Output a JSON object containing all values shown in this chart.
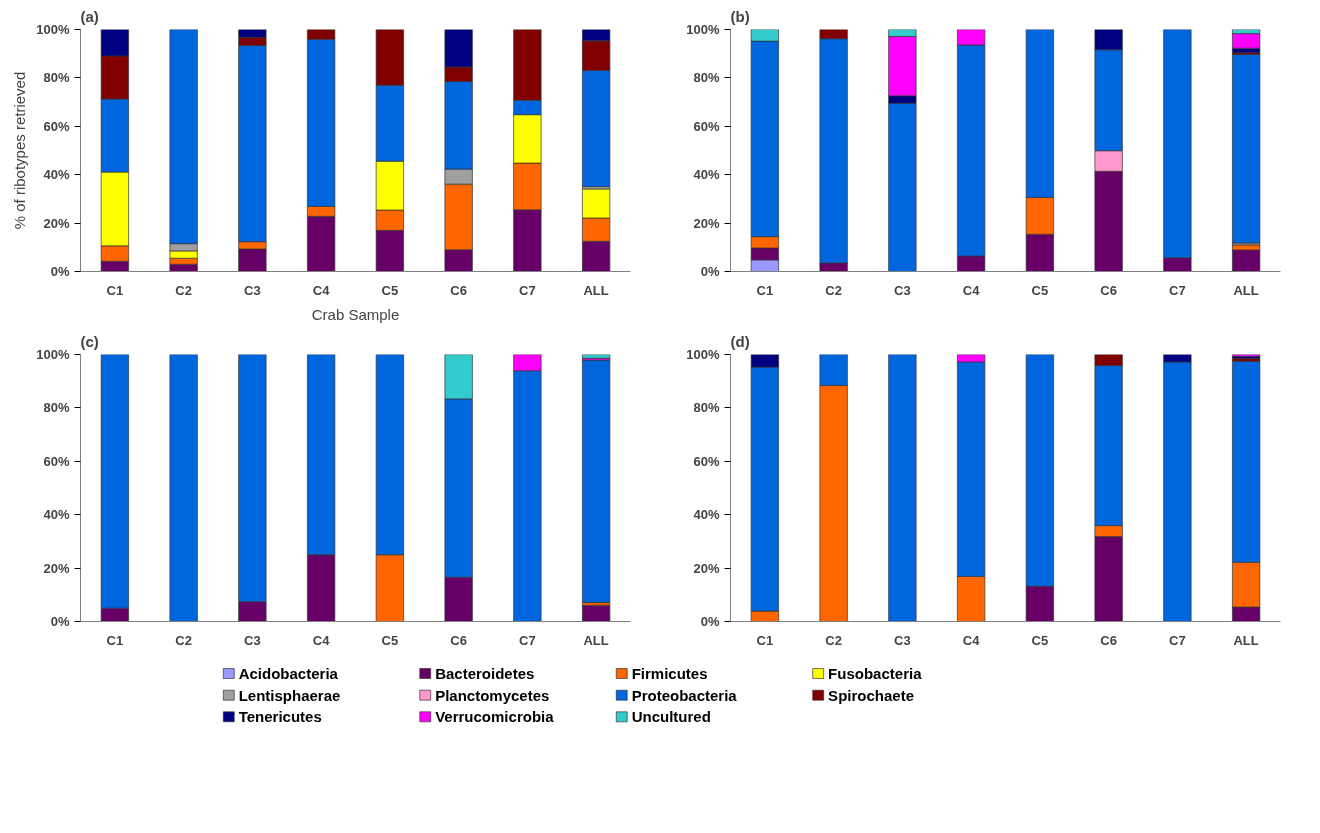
{
  "chart_data": [
    {
      "type": "bar",
      "stacked": true,
      "title": "(a)",
      "ylabel": "% of ribotypes retrieved",
      "xlabel": "Crab Sample",
      "categories": [
        "C1",
        "C2",
        "C3",
        "C4",
        "C5",
        "C6",
        "C7",
        "ALL"
      ],
      "ylim": [
        0,
        100
      ],
      "yticks": [
        {
          "value": 0,
          "label": "0%"
        },
        {
          "value": 20,
          "label": "20%"
        },
        {
          "value": 40,
          "label": "40%"
        },
        {
          "value": 60,
          "label": "60%"
        },
        {
          "value": 80,
          "label": "80%"
        },
        {
          "value": 100,
          "label": "100%"
        }
      ],
      "grid": false,
      "legend": "bottom",
      "series": [
        {
          "name": "Acidobacteria",
          "color": "#9999ff",
          "values": [
            null,
            null,
            null,
            null,
            null,
            null,
            null,
            null
          ]
        },
        {
          "name": "Bacteroidetes",
          "color": "#660066",
          "values": [
            4.2,
            3,
            9.3,
            22.8,
            17,
            9,
            25.5,
            12.5
          ]
        },
        {
          "name": "Firmicutes",
          "color": "#ff6600",
          "values": [
            6.4,
            2.5,
            3,
            4.1,
            8.4,
            27.1,
            19.3,
            9.6
          ]
        },
        {
          "name": "Fusobacteria",
          "color": "#ffff00",
          "values": [
            30.5,
            3,
            null,
            null,
            20.2,
            null,
            20,
            12
          ]
        },
        {
          "name": "Lentisphaerae",
          "color": "#a0a0a0",
          "values": [
            null,
            3,
            null,
            null,
            null,
            6.2,
            null,
            1
          ]
        },
        {
          "name": "Planctomycetes",
          "color": "#ff99cc",
          "values": [
            null,
            null,
            null,
            null,
            null,
            null,
            null,
            null
          ]
        },
        {
          "name": "Proteobacteria",
          "color": "#0066dd",
          "values": [
            30.2,
            88.5,
            81.1,
            69.1,
            31.4,
            36.2,
            6,
            48
          ]
        },
        {
          "name": "Spirochaete",
          "color": "#800000",
          "values": [
            17.8,
            null,
            3.3,
            4,
            23,
            6,
            29.2,
            12.2
          ]
        },
        {
          "name": "Tenericutes",
          "color": "#000080",
          "values": [
            10.9,
            null,
            3.3,
            null,
            null,
            15.5,
            null,
            4.7
          ]
        },
        {
          "name": "Verrucomicrobia",
          "color": "#ff00ff",
          "values": [
            null,
            null,
            null,
            null,
            null,
            null,
            null,
            null
          ]
        },
        {
          "name": "Uncultured",
          "color": "#33cccc",
          "values": [
            null,
            null,
            null,
            null,
            null,
            null,
            null,
            null
          ]
        }
      ]
    },
    {
      "type": "bar",
      "stacked": true,
      "title": "(b)",
      "categories": [
        "C1",
        "C2",
        "C3",
        "C4",
        "C5",
        "C6",
        "C7",
        "ALL"
      ],
      "ylim": [
        0,
        100
      ],
      "yticks": [
        {
          "value": 0,
          "label": "0%"
        },
        {
          "value": 20,
          "label": "20%"
        },
        {
          "value": 40,
          "label": "40%"
        },
        {
          "value": 60,
          "label": "60%"
        },
        {
          "value": 80,
          "label": "80%"
        },
        {
          "value": 100,
          "label": "100%"
        }
      ],
      "grid": false,
      "series": [
        {
          "color": "#9999ff",
          "values": [
            4.8,
            null,
            null,
            null,
            null,
            null,
            null,
            null
          ]
        },
        {
          "color": "#660066",
          "values": [
            4.9,
            3.5,
            null,
            6.4,
            15.4,
            41.4,
            5.7,
            8.9
          ]
        },
        {
          "color": "#ff6600",
          "values": [
            4.7,
            null,
            null,
            null,
            15.2,
            null,
            null,
            2.1
          ]
        },
        {
          "color": "#ffff00",
          "values": [
            null,
            null,
            null,
            null,
            null,
            null,
            null,
            null
          ]
        },
        {
          "color": "#a0a0a0",
          "values": [
            null,
            null,
            null,
            null,
            null,
            null,
            null,
            0.8
          ]
        },
        {
          "color": "#ff99cc",
          "values": [
            null,
            null,
            null,
            null,
            null,
            8.5,
            null,
            null
          ]
        },
        {
          "color": "#0066dd",
          "values": [
            80.8,
            92.7,
            69.5,
            87.2,
            69.4,
            41.7,
            94.3,
            77.9
          ]
        },
        {
          "color": "#800000",
          "values": [
            null,
            3.8,
            null,
            null,
            null,
            null,
            null,
            0.7
          ]
        },
        {
          "color": "#000080",
          "values": [
            null,
            null,
            3.1,
            null,
            null,
            8.4,
            null,
            1.9
          ]
        },
        {
          "color": "#ff00ff",
          "values": [
            null,
            null,
            24.5,
            6.4,
            null,
            null,
            null,
            6
          ]
        },
        {
          "color": "#33cccc",
          "values": [
            4.8,
            null,
            2.9,
            null,
            null,
            null,
            null,
            1.7
          ]
        }
      ]
    },
    {
      "type": "bar",
      "stacked": true,
      "title": "(c)",
      "categories": [
        "C1",
        "C2",
        "C3",
        "C4",
        "C5",
        "C6",
        "C7",
        "ALL"
      ],
      "ylim": [
        0,
        100
      ],
      "yticks": [
        {
          "value": 0,
          "label": "0%"
        },
        {
          "value": 20,
          "label": "20%"
        },
        {
          "value": 40,
          "label": "40%"
        },
        {
          "value": 60,
          "label": "60%"
        },
        {
          "value": 80,
          "label": "80%"
        },
        {
          "value": 100,
          "label": "100%"
        }
      ],
      "grid": false,
      "series": [
        {
          "color": "#9999ff",
          "values": [
            null,
            null,
            null,
            null,
            null,
            null,
            null,
            null
          ]
        },
        {
          "color": "#660066",
          "values": [
            5,
            null,
            7.4,
            25,
            null,
            16.6,
            null,
            6.1
          ]
        },
        {
          "color": "#ff6600",
          "values": [
            null,
            null,
            null,
            null,
            25,
            null,
            null,
            1
          ]
        },
        {
          "color": "#ffff00",
          "values": [
            null,
            null,
            null,
            null,
            null,
            null,
            null,
            null
          ]
        },
        {
          "color": "#a0a0a0",
          "values": [
            null,
            null,
            null,
            null,
            null,
            null,
            null,
            null
          ]
        },
        {
          "color": "#ff99cc",
          "values": [
            null,
            null,
            null,
            null,
            null,
            null,
            null,
            null
          ]
        },
        {
          "color": "#0066dd",
          "values": [
            95,
            100,
            92.6,
            75,
            75,
            66.8,
            93.9,
            90.8
          ]
        },
        {
          "color": "#800000",
          "values": [
            null,
            null,
            null,
            null,
            null,
            null,
            null,
            null
          ]
        },
        {
          "color": "#000080",
          "values": [
            null,
            null,
            null,
            null,
            null,
            null,
            null,
            null
          ]
        },
        {
          "color": "#ff00ff",
          "values": [
            null,
            null,
            null,
            null,
            null,
            null,
            6.1,
            0.7
          ]
        },
        {
          "color": "#33cccc",
          "values": [
            null,
            null,
            null,
            null,
            null,
            16.6,
            null,
            1.4
          ]
        }
      ]
    },
    {
      "type": "bar",
      "stacked": true,
      "title": "(d)",
      "categories": [
        "C1",
        "C2",
        "C3",
        "C4",
        "C5",
        "C6",
        "C7",
        "ALL"
      ],
      "ylim": [
        0,
        100
      ],
      "yticks": [
        {
          "value": 0,
          "label": "0%"
        },
        {
          "value": 20,
          "label": "20%"
        },
        {
          "value": 40,
          "label": "40%"
        },
        {
          "value": 60,
          "label": "60%"
        },
        {
          "value": 80,
          "label": "80%"
        },
        {
          "value": 100,
          "label": "100%"
        }
      ],
      "grid": false,
      "series": [
        {
          "color": "#9999ff",
          "values": [
            null,
            null,
            null,
            null,
            null,
            null,
            null,
            null
          ]
        },
        {
          "color": "#660066",
          "values": [
            null,
            null,
            null,
            null,
            13.2,
            31.8,
            null,
            5.4
          ]
        },
        {
          "color": "#ff6600",
          "values": [
            3.9,
            88.4,
            null,
            16.9,
            null,
            4.1,
            null,
            16.8
          ]
        },
        {
          "color": "#ffff00",
          "values": [
            null,
            null,
            null,
            null,
            null,
            null,
            null,
            null
          ]
        },
        {
          "color": "#a0a0a0",
          "values": [
            null,
            null,
            null,
            null,
            null,
            null,
            null,
            null
          ]
        },
        {
          "color": "#ff99cc",
          "values": [
            null,
            null,
            null,
            null,
            null,
            null,
            null,
            null
          ]
        },
        {
          "color": "#0066dd",
          "values": [
            91.4,
            11.6,
            100,
            80.3,
            86.8,
            60,
            97.2,
            75.3
          ]
        },
        {
          "color": "#800000",
          "values": [
            null,
            null,
            null,
            null,
            null,
            4.1,
            null,
            1
          ]
        },
        {
          "color": "#000080",
          "values": [
            4.7,
            null,
            null,
            null,
            null,
            null,
            2.8,
            0.8
          ]
        },
        {
          "color": "#ff00ff",
          "values": [
            null,
            null,
            null,
            2.8,
            null,
            null,
            null,
            0.7
          ]
        },
        {
          "color": "#33cccc",
          "values": [
            null,
            null,
            null,
            null,
            null,
            null,
            null,
            null
          ]
        }
      ]
    }
  ]
}
